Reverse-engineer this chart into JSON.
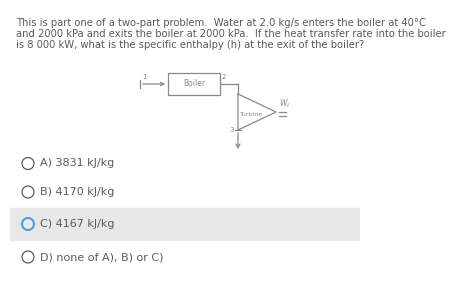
{
  "title_text": "This is part one of a two-part problem.  Water at 2.0 kg/s enters the boiler at 40°C\nand 2000 kPa and exits the boiler at 2000 kPa.  If the heat transfer rate into the boiler\nis 8 000 kW, what is the specific enthalpy (h) at the exit of the boiler?",
  "options": [
    {
      "label": "A) 3831 kJ/kg",
      "selected": false
    },
    {
      "label": "B) 4170 kJ/kg",
      "selected": false
    },
    {
      "label": "C) 4167 kJ/kg",
      "selected": true
    },
    {
      "label": "D) none of A), B) or C)",
      "selected": false
    }
  ],
  "bg_color": "#ffffff",
  "text_color": "#5a5a5a",
  "selected_bg": "#e8e8e8",
  "circle_color_selected": "#5599dd",
  "circle_color_unselected": "#5a5a5a",
  "title_fontsize": 7.2,
  "option_fontsize": 8.0,
  "diagram_color": "#888888"
}
